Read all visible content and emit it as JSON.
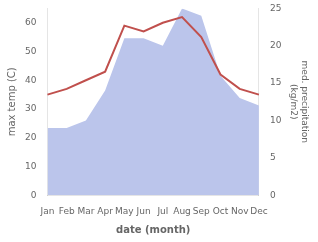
{
  "chart_data": {
    "type": "line",
    "xlabel": "date (month)",
    "ylabel": "max temp (C)",
    "y2label": "med. precipitation\n(kg/m2)",
    "categories": [
      "Jan",
      "Feb",
      "Mar",
      "Apr",
      "May",
      "Jun",
      "Jul",
      "Aug",
      "Sep",
      "Oct",
      "Nov",
      "Dec"
    ],
    "series": [
      {
        "type": "area",
        "color": "#bbc5eb",
        "axis": "y2",
        "values": [
          9,
          9,
          10,
          14,
          21,
          21,
          20,
          25,
          24,
          16,
          13,
          12
        ]
      },
      {
        "type": "line",
        "color": "#c0504d",
        "values": [
          35,
          37,
          40,
          43,
          59,
          57,
          60,
          62,
          55,
          42,
          37,
          35
        ]
      }
    ],
    "ylim": [
      0,
      65
    ],
    "yticks": [
      0,
      10,
      20,
      30,
      40,
      50,
      60
    ],
    "y2lim": [
      0,
      25
    ],
    "y2ticks": [
      0,
      5,
      10,
      15,
      20,
      25
    ],
    "grid": false
  }
}
